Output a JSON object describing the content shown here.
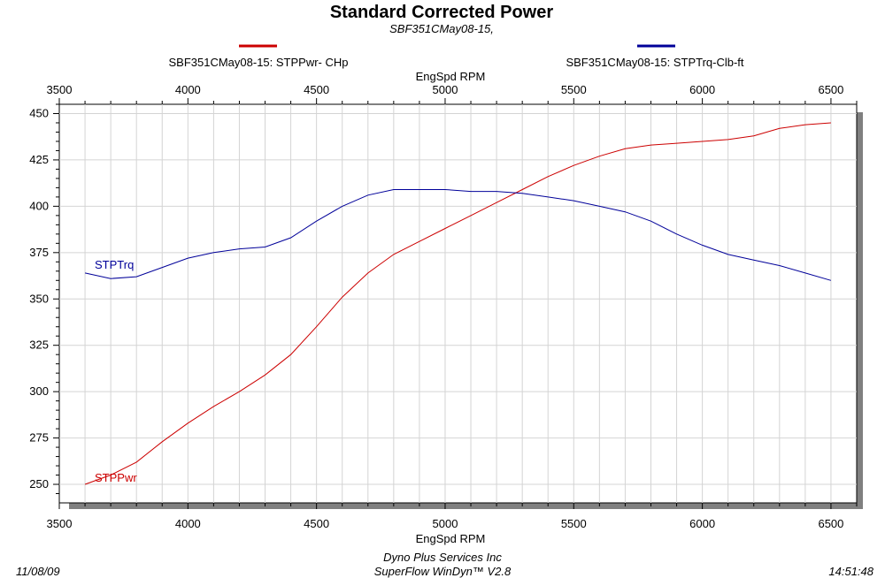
{
  "chart_data": {
    "type": "line",
    "title": "Standard Corrected Power",
    "subtitle": "SBF351CMay08-15,",
    "xlabel": "EngSpd  RPM",
    "ylabel": "",
    "xlim": [
      3500,
      6600
    ],
    "ylim": [
      240,
      455
    ],
    "x_ticks": [
      "3500",
      "4000",
      "4500",
      "5000",
      "5500",
      "6000",
      "6500"
    ],
    "y_ticks": [
      "250",
      "275",
      "300",
      "325",
      "350",
      "375",
      "400",
      "425",
      "450"
    ],
    "grid": true,
    "legend_position": "top",
    "x": [
      3600,
      3700,
      3800,
      3900,
      4000,
      4100,
      4200,
      4300,
      4400,
      4500,
      4600,
      4700,
      4800,
      4900,
      5000,
      5100,
      5200,
      5300,
      5400,
      5500,
      5600,
      5700,
      5800,
      5900,
      6000,
      6100,
      6200,
      6300,
      6400,
      6500
    ],
    "series": [
      {
        "name": "SBF351CMay08-15: STPPwr- CHp",
        "label": "STPPwr",
        "color": "#cc0000",
        "values": [
          250,
          255,
          262,
          273,
          283,
          292,
          300,
          309,
          320,
          335,
          351,
          364,
          374,
          381,
          388,
          395,
          402,
          409,
          416,
          422,
          427,
          431,
          433,
          434,
          435,
          436,
          438,
          442,
          444,
          445
        ]
      },
      {
        "name": "SBF351CMay08-15: STPTrq-Clb-ft",
        "label": "STPTrq",
        "color": "#000099",
        "values": [
          364,
          361,
          362,
          367,
          372,
          375,
          377,
          378,
          383,
          392,
          400,
          406,
          409,
          409,
          409,
          408,
          408,
          407,
          405,
          403,
          400,
          397,
          392,
          385,
          379,
          374,
          371,
          368,
          364,
          360
        ]
      }
    ]
  },
  "footer": {
    "date": "11/08/09",
    "company": "Dyno Plus Services Inc",
    "software": "SuperFlow WinDyn™ V2.8",
    "time": "14:51:48"
  }
}
